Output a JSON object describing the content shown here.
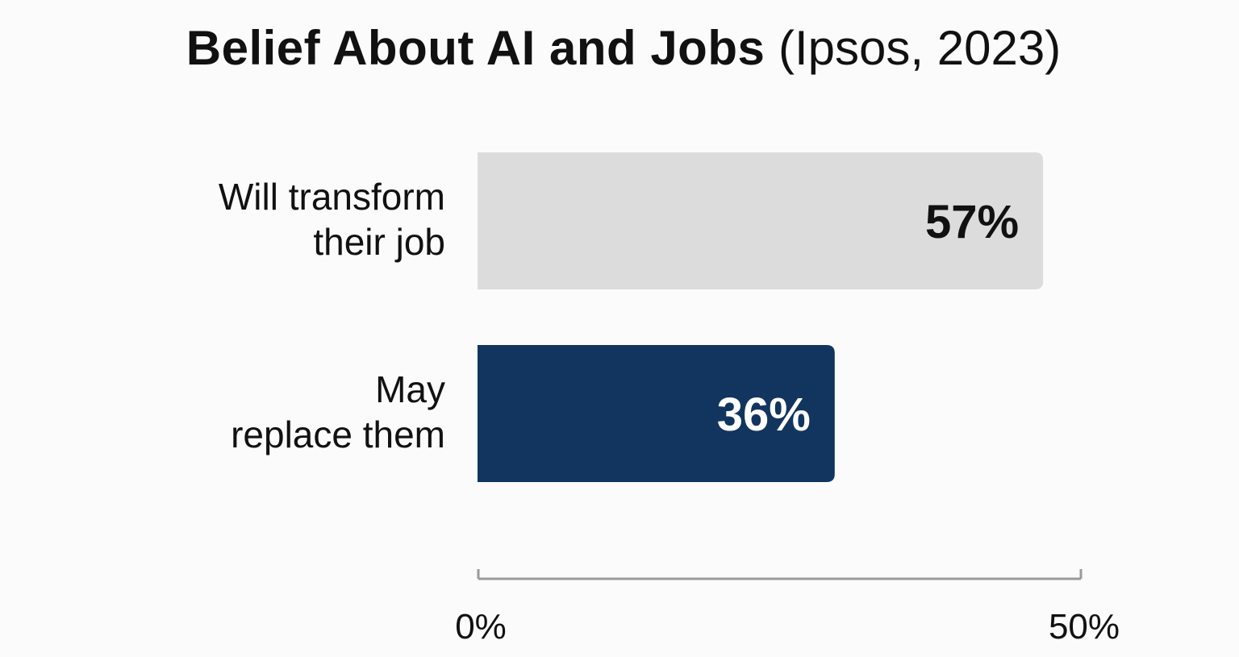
{
  "chart_data": {
    "type": "bar",
    "orientation": "horizontal",
    "title": "Belief About AI and Jobs",
    "subtitle": "(Ipsos, 2023)",
    "categories": [
      [
        "Will transform",
        "their job"
      ],
      [
        "May",
        "replace them"
      ]
    ],
    "values": [
      57,
      36
    ],
    "data_labels": [
      "57%",
      "36%"
    ],
    "bar_colors": [
      "#dcdcdc",
      "#12355f"
    ],
    "data_label_colors": [
      "#111111",
      "#ffffff"
    ],
    "x_ticks": [
      "0%",
      "50%"
    ],
    "grid": false,
    "legend": "none"
  }
}
